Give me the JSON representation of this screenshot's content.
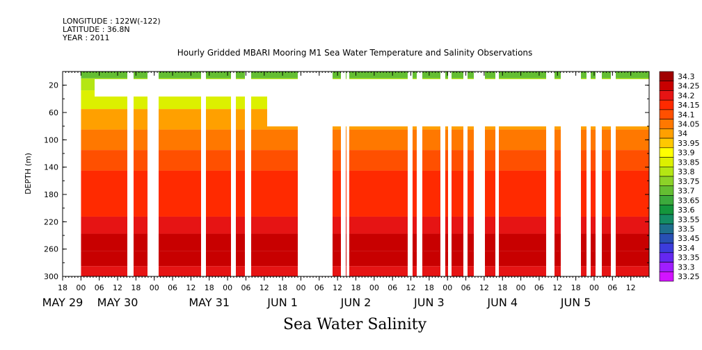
{
  "header": {
    "longitude": "LONGITUDE : 122W(-122)",
    "latitude": "LATITUDE : 36.8N",
    "year": "YEAR : 2011"
  },
  "chart_data": {
    "type": "heatmap",
    "title": "Hourly Gridded MBARI Mooring M1 Sea Water Temperature and Salinity Observations",
    "xlabel": "Sea Water Salinity",
    "ylabel": "DEPTH (m)",
    "x_range_hours": [
      -6,
      186
    ],
    "ylim": [
      300,
      0
    ],
    "y_ticks": [
      20,
      60,
      100,
      140,
      180,
      220,
      260,
      300
    ],
    "x_hour_ticks": [
      "18",
      "00",
      "06",
      "12",
      "18",
      "00",
      "06",
      "12",
      "18",
      "00",
      "06",
      "12",
      "18",
      "00",
      "06",
      "12",
      "18",
      "00",
      "06",
      "12",
      "18",
      "00",
      "06",
      "12",
      "18",
      "00",
      "06",
      "12",
      "18",
      "00",
      "06",
      "12"
    ],
    "date_labels": [
      {
        "label": "MAY 29",
        "hour": -6
      },
      {
        "label": "MAY 30",
        "hour": 12
      },
      {
        "label": "MAY 31",
        "hour": 42
      },
      {
        "label": "JUN  1",
        "hour": 66
      },
      {
        "label": "JUN  2",
        "hour": 90
      },
      {
        "label": "JUN  3",
        "hour": 114
      },
      {
        "label": "JUN  4",
        "hour": 138
      },
      {
        "label": "JUN  5",
        "hour": 162
      }
    ],
    "colorbar_levels": [
      "34.3",
      "34.25",
      "34.2",
      "34.15",
      "34.1",
      "34.05",
      "34",
      "33.95",
      "33.9",
      "33.85",
      "33.8",
      "33.75",
      "33.7",
      "33.65",
      "33.6",
      "33.55",
      "33.5",
      "33.45",
      "33.4",
      "33.35",
      "33.3",
      "33.25"
    ],
    "colorbar_colors": [
      "#a00000",
      "#c80000",
      "#e61414",
      "#ff2a00",
      "#ff5000",
      "#ff7800",
      "#ffa000",
      "#ffc800",
      "#ffff00",
      "#dcf000",
      "#b4e614",
      "#8cd228",
      "#64be32",
      "#3caa3c",
      "#14963c",
      "#148c64",
      "#1e6e8c",
      "#2850b4",
      "#3c3cdc",
      "#6428f0",
      "#a01eff",
      "#d214ff"
    ],
    "depth_profile": [
      {
        "depth": 5,
        "value": 33.7
      },
      {
        "depth": 15,
        "value": 33.8
      },
      {
        "depth": 40,
        "value": 33.85
      },
      {
        "depth": 70,
        "value": 34.0
      },
      {
        "depth": 100,
        "value": 34.05
      },
      {
        "depth": 130,
        "value": 34.1
      },
      {
        "depth": 160,
        "value": 34.15
      },
      {
        "depth": 200,
        "value": 34.15
      },
      {
        "depth": 225,
        "value": 34.2
      },
      {
        "depth": 250,
        "value": 34.25
      },
      {
        "depth": 275,
        "value": 34.25
      },
      {
        "depth": 295,
        "value": 34.2
      }
    ]
  }
}
